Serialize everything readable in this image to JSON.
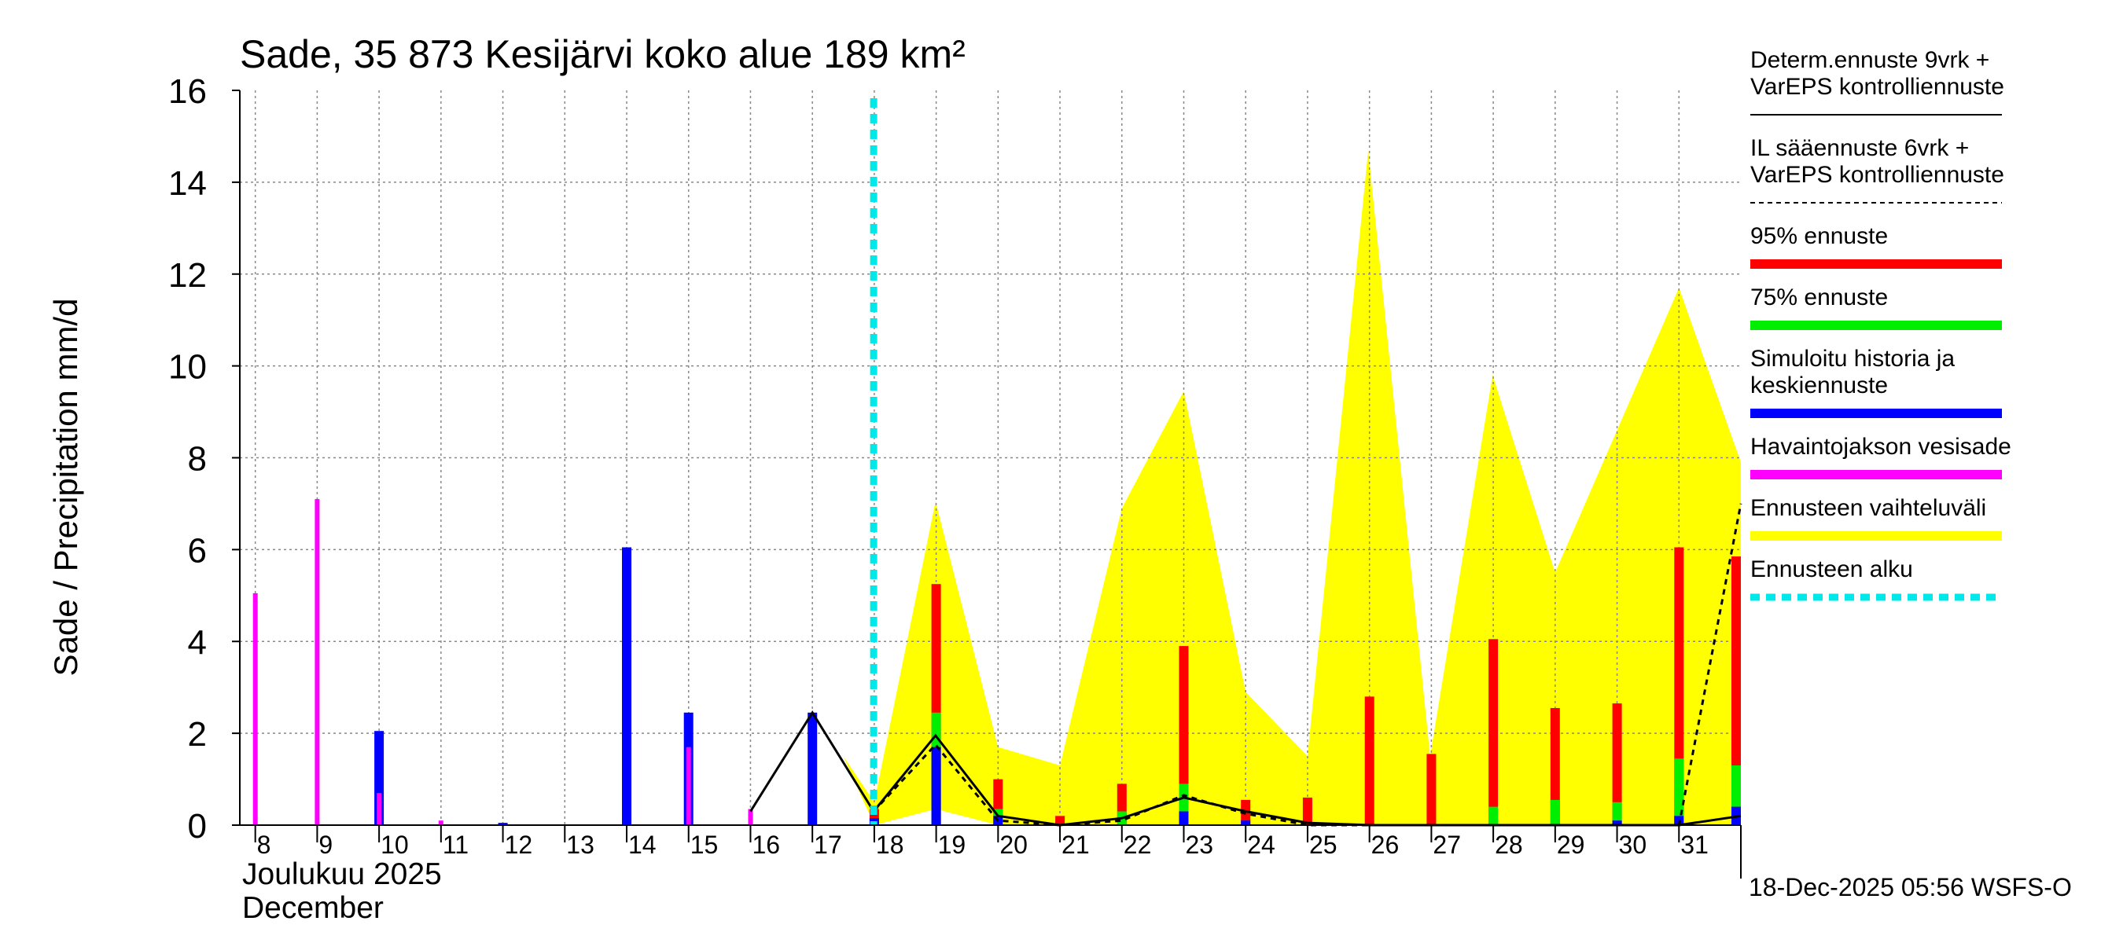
{
  "chart_data": {
    "type": "bar",
    "title": "Sade, 35 873 Kesijärvi koko alue 189 km²",
    "ylabel": "Sade / Precipitation   mm/d",
    "xlabel_line1": "Joulukuu  2025",
    "xlabel_line2": "December",
    "footer": "18-Dec-2025 05:56 WSFS-O",
    "ylim": [
      0,
      16
    ],
    "yticks": [
      "0",
      "2",
      "4",
      "6",
      "8",
      "10",
      "12",
      "14",
      "16"
    ],
    "days": [
      "8",
      "9",
      "10",
      "11",
      "12",
      "13",
      "14",
      "15",
      "16",
      "17",
      "18",
      "19",
      "20",
      "21",
      "22",
      "23",
      "24",
      "25",
      "26",
      "27",
      "28",
      "29",
      "30",
      "31"
    ],
    "forecast_start_day": 17.99,
    "observed_precipitation": [
      {
        "day": 8.0,
        "value": 5.05
      },
      {
        "day": 9.0,
        "value": 7.1
      },
      {
        "day": 10.0,
        "value": 0.7
      },
      {
        "day": 11.0,
        "value": 0.1
      },
      {
        "day": 15.0,
        "value": 1.7
      },
      {
        "day": 16.0,
        "value": 0.35
      }
    ],
    "simulated_history_and_mean_forecast": [
      {
        "day": 10.0,
        "value": 2.05
      },
      {
        "day": 12.0,
        "value": 0.05
      },
      {
        "day": 14.0,
        "value": 6.05
      },
      {
        "day": 15.0,
        "value": 2.45
      },
      {
        "day": 17.0,
        "value": 2.45
      },
      {
        "day": 18.0,
        "value": 0.15
      },
      {
        "day": 19.0,
        "value": 1.7
      },
      {
        "day": 20.0,
        "value": 0.2
      },
      {
        "day": 23.0,
        "value": 0.3
      },
      {
        "day": 24.0,
        "value": 0.1
      },
      {
        "day": 30.0,
        "value": 0.1
      },
      {
        "day": 31.0,
        "value": 0.2
      },
      {
        "day": 32.0,
        "value": 0.4
      }
    ],
    "forecast_75pct": [
      {
        "day": 19.0,
        "value": 2.45
      },
      {
        "day": 20.0,
        "value": 0.35
      },
      {
        "day": 22.0,
        "value": 0.3
      },
      {
        "day": 23.0,
        "value": 0.9
      },
      {
        "day": 28.0,
        "value": 0.4
      },
      {
        "day": 29.0,
        "value": 0.55
      },
      {
        "day": 30.0,
        "value": 0.5
      },
      {
        "day": 31.0,
        "value": 1.45
      },
      {
        "day": 32.0,
        "value": 1.3
      }
    ],
    "forecast_95pct": [
      {
        "day": 18.0,
        "value": 0.35
      },
      {
        "day": 19.0,
        "value": 5.25
      },
      {
        "day": 20.0,
        "value": 1.0
      },
      {
        "day": 21.0,
        "value": 0.2
      },
      {
        "day": 22.0,
        "value": 0.9
      },
      {
        "day": 23.0,
        "value": 3.9
      },
      {
        "day": 24.0,
        "value": 0.55
      },
      {
        "day": 25.0,
        "value": 0.6
      },
      {
        "day": 26.0,
        "value": 2.8
      },
      {
        "day": 27.0,
        "value": 1.55
      },
      {
        "day": 28.0,
        "value": 4.05
      },
      {
        "day": 29.0,
        "value": 2.55
      },
      {
        "day": 30.0,
        "value": 2.65
      },
      {
        "day": 31.0,
        "value": 6.05
      },
      {
        "day": 32.0,
        "value": 5.85
      }
    ],
    "forecast_range": {
      "x": [
        17.5,
        18.0,
        18.99,
        20.0,
        21.0,
        22.0,
        23.0,
        24.0,
        25.0,
        25.98,
        26.98,
        27.99,
        29.0,
        30.0,
        31.0,
        32.0
      ],
      "upper": [
        1.5,
        0.5,
        7.05,
        1.7,
        1.3,
        6.9,
        9.45,
        2.9,
        1.5,
        14.7,
        1.5,
        9.8,
        5.5,
        8.6,
        11.7,
        7.9
      ],
      "lower": [
        1.5,
        0.0,
        0.35,
        0.0,
        0.0,
        0.0,
        0.0,
        0.0,
        0.0,
        0.0,
        0.0,
        0.0,
        0.0,
        0.0,
        0.0,
        0.0
      ]
    },
    "determ_forecast_line": {
      "x": [
        16.0,
        17.0,
        17.99,
        18.99,
        20.0,
        21.0,
        22.0,
        23.0,
        24.0,
        25.0,
        26.0,
        27.0,
        28.0,
        29.0,
        30.0,
        31.0,
        32.0
      ],
      "y": [
        0.3,
        2.45,
        0.3,
        1.95,
        0.2,
        0.0,
        0.15,
        0.6,
        0.3,
        0.05,
        0.0,
        0.0,
        0.0,
        0.0,
        0.0,
        0.0,
        0.2
      ]
    },
    "il_forecast_line": {
      "x": [
        17.99,
        18.99,
        20.0,
        21.0,
        22.0,
        23.0,
        24.0,
        25.0,
        26.0,
        27.0,
        28.0,
        29.0,
        30.0,
        31.0,
        32.0
      ],
      "y": [
        0.3,
        1.75,
        0.1,
        0.0,
        0.1,
        0.65,
        0.25,
        0.0,
        0.0,
        0.0,
        0.0,
        0.0,
        0.0,
        0.0,
        7.0
      ]
    },
    "legend": [
      {
        "label_line1": "Determ.ennuste 9vrk +",
        "label_line2": "VarEPS kontrolliennuste",
        "color": "#000000",
        "style": "solid-thin"
      },
      {
        "label_line1": "IL sääennuste 6vrk  +",
        "label_line2": "  VarEPS kontrolliennuste",
        "color": "#000000",
        "style": "dashed-thin"
      },
      {
        "label_line1": "95% ennuste",
        "color": "#ff0000",
        "style": "thick"
      },
      {
        "label_line1": "75% ennuste",
        "color": "#00ee00",
        "style": "thick"
      },
      {
        "label_line1": "Simuloitu historia ja",
        "label_line2": "keskiennuste",
        "color": "#0000ff",
        "style": "thick"
      },
      {
        "label_line1": "Havaintojakson vesisade",
        "color": "#ff00ff",
        "style": "thick"
      },
      {
        "label_line1": "Ennusteen vaihteluväli",
        "color": "#ffff00",
        "style": "thick"
      },
      {
        "label_line1": "Ennusteen alku",
        "color": "#00e8e8",
        "style": "dashed-thick"
      }
    ],
    "colors": {
      "observed": "#ff00ff",
      "simulated": "#0000ff",
      "p75": "#00ee00",
      "p95": "#ff0000",
      "range": "#ffff00",
      "forecast_start": "#00e8e8",
      "grid": "#888888"
    }
  }
}
